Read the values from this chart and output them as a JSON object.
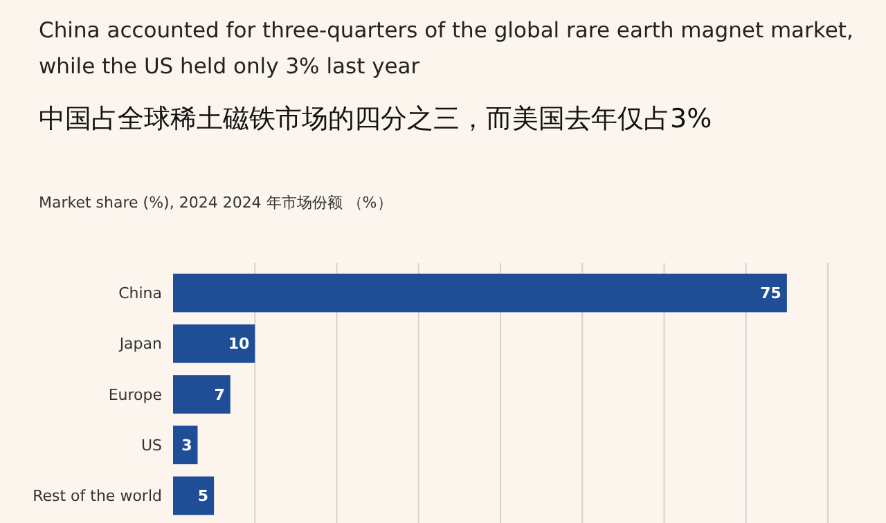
{
  "chart_data": {
    "type": "bar",
    "orientation": "horizontal",
    "title": "China accounted for three-quarters of the global rare earth magnet market, while the US held only 3% last year",
    "subtitle": "中国占全球稀土磁铁市场的四分之三，而美国去年仅占3%",
    "annotations": [
      "Market share (%), 2024  2024 年市场份额 （%）"
    ],
    "categories": [
      "China",
      "Japan",
      "Europe",
      "US",
      "Rest of the world"
    ],
    "values": [
      75,
      10,
      7,
      3,
      5
    ],
    "color": "#1f4e96",
    "data_labels": true,
    "xlim": [
      0,
      80
    ],
    "xticks": [
      {
        "value": 10,
        "label": null
      },
      {
        "value": 20,
        "label": null
      },
      {
        "value": 30,
        "label": null
      },
      {
        "value": 40,
        "label": null
      },
      {
        "value": 50,
        "label": null
      },
      {
        "value": 60,
        "label": null
      },
      {
        "value": 70,
        "label": null
      },
      {
        "value": 80,
        "label": null
      }
    ],
    "grid": "x",
    "tick_labels": "y"
  }
}
